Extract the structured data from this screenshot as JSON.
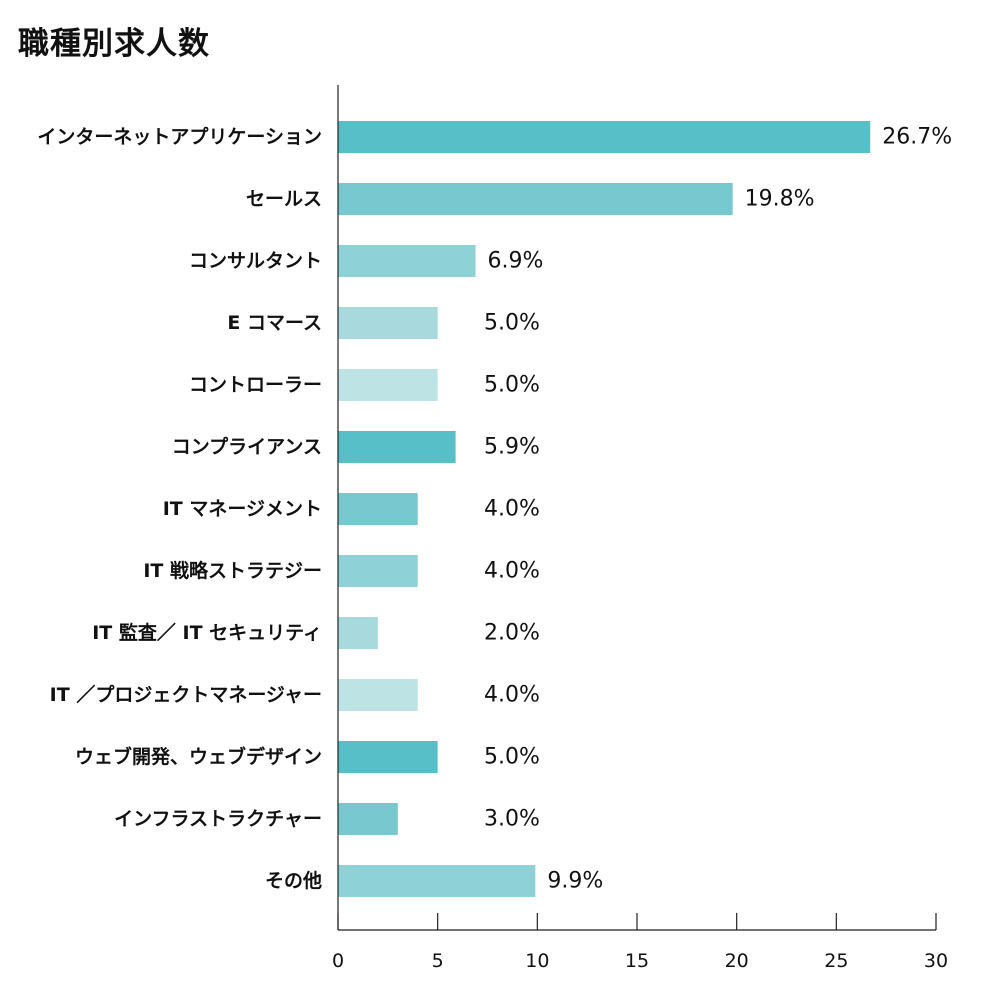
{
  "chart_data": {
    "type": "bar",
    "orientation": "horizontal",
    "title": "職種別求人数",
    "xlabel": "",
    "ylabel": "",
    "xlim": [
      0,
      30
    ],
    "xticks": [
      0,
      5,
      10,
      15,
      20,
      25,
      30
    ],
    "grid": false,
    "categories": [
      "インターネットアプリケーション",
      "セールス",
      "コンサルタント",
      "E コマース",
      "コントローラー",
      "コンプライアンス",
      "IT マネージメント",
      "IT 戦略ストラテジー",
      "IT 監査／ IT セキュリティ",
      "IT ／プロジェクトマネージャー",
      "ウェブ開発、ウェブデザイン",
      "インフラストラクチャー",
      "その他"
    ],
    "values": [
      26.7,
      19.8,
      6.9,
      5.0,
      5.0,
      5.9,
      4.0,
      4.0,
      2.0,
      4.0,
      5.0,
      3.0,
      9.9
    ],
    "value_labels": [
      "26.7%",
      "19.8%",
      "6.9%",
      "5.0%",
      "5.0%",
      "5.9%",
      "4.0%",
      "4.0%",
      "2.0%",
      "4.0%",
      "5.0%",
      "3.0%",
      "9.9%"
    ],
    "colors": [
      "#56bfc8",
      "#77c8cf",
      "#8ed1d6",
      "#a8d9dd",
      "#bde3e5",
      "#56bfc8",
      "#77c8cf",
      "#8ed1d6",
      "#a8d9dd",
      "#bde3e5",
      "#56bfc8",
      "#77c8cf",
      "#8ed1d6"
    ]
  }
}
